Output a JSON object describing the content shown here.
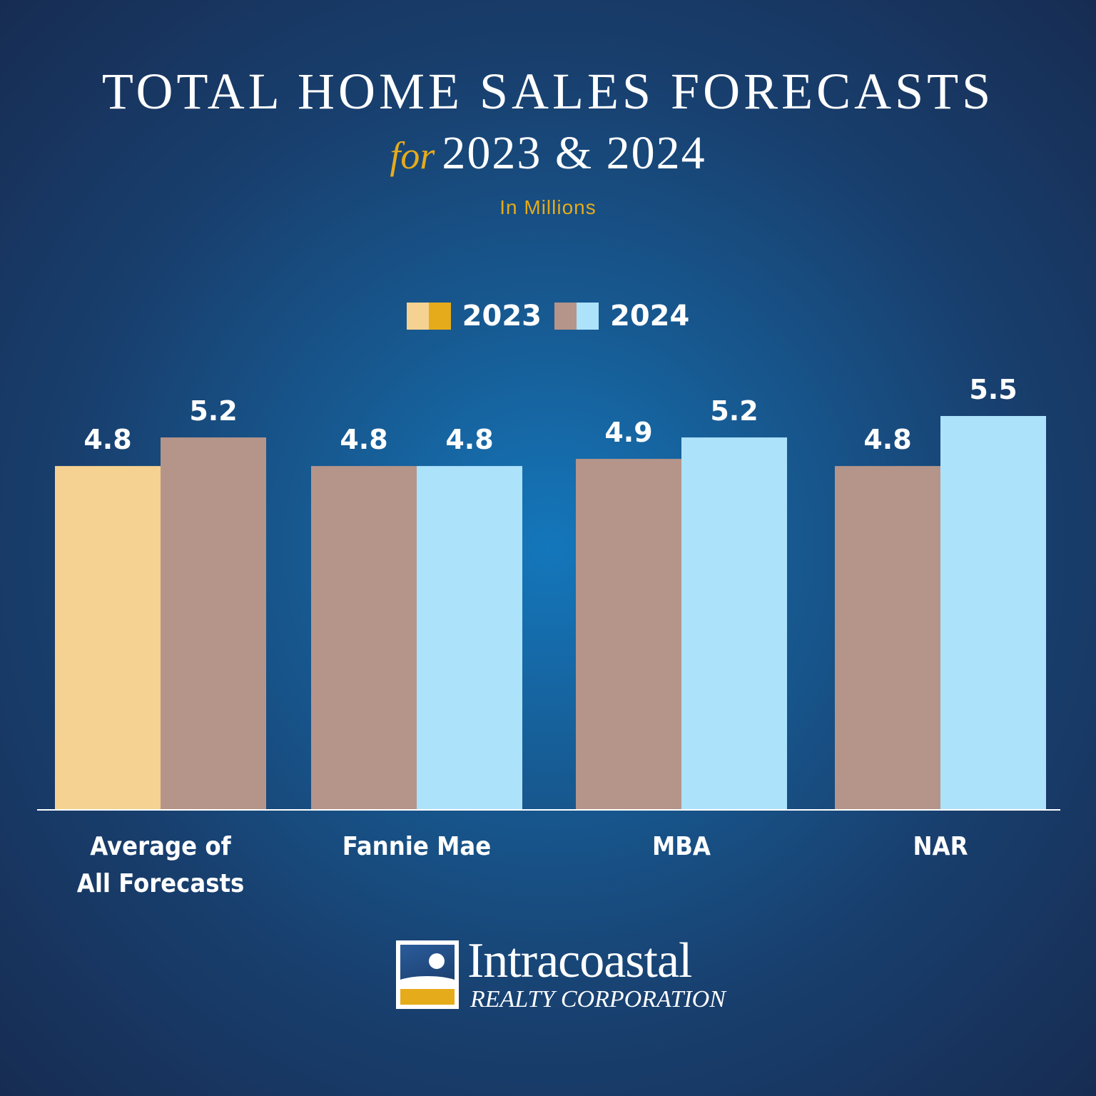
{
  "title": "TOTAL HOME SALES FORECASTS",
  "subtitle_prefix": "for",
  "subtitle": "2023 & 2024",
  "units": "In Millions",
  "legend": [
    {
      "label": "2023",
      "colors": [
        "#f5d292",
        "#e6ab1a"
      ]
    },
    {
      "label": "2024",
      "colors": [
        "#b5958a",
        "#ade2fb"
      ]
    }
  ],
  "colors": {
    "avg_2023": "#f5d292",
    "bar_2023": "#b5958a",
    "bar_2024": "#ade2fb",
    "avg_2024": "#b5958a",
    "label": "#ffffff",
    "axis": "#ffffff"
  },
  "chart_data": {
    "type": "bar",
    "categories": [
      [
        "Average of",
        "All Forecasts"
      ],
      [
        "Fannie Mae"
      ],
      [
        "MBA"
      ],
      [
        "NAR"
      ]
    ],
    "series": [
      {
        "name": "2023",
        "values": [
          4.8,
          4.8,
          4.9,
          4.8
        ]
      },
      {
        "name": "2024",
        "values": [
          5.2,
          4.8,
          5.2,
          5.5
        ]
      }
    ],
    "value_labels": [
      [
        "4.8",
        "4.8",
        "4.9",
        "4.8"
      ],
      [
        "5.2",
        "4.8",
        "5.2",
        "5.5"
      ]
    ],
    "ylim": [
      0,
      5.5
    ],
    "grid": false,
    "legend_position": "top-center"
  },
  "logo": {
    "name": "Intracoastal",
    "subtitle": "REALTY CORPORATION"
  }
}
